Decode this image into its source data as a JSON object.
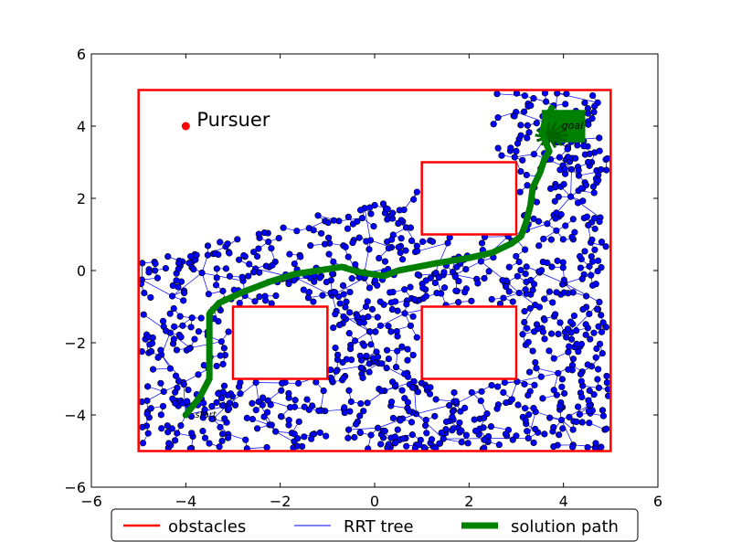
{
  "chart_data": {
    "type": "scatter",
    "xlim": [
      -6,
      6
    ],
    "ylim": [
      -6,
      6
    ],
    "x_ticks": [
      "−6",
      "−4",
      "−2",
      "0",
      "2",
      "4",
      "6"
    ],
    "y_ticks": [
      "−6",
      "−4",
      "−2",
      "0",
      "2",
      "4",
      "6"
    ],
    "grid": false,
    "legend_placement": "bottom-center outside",
    "legend": {
      "obstacles": "obstacles",
      "tree": "RRT tree",
      "path": "solution path"
    },
    "colors": {
      "obstacles": "#ff0000",
      "tree": "#0000ff",
      "nodes": "#0000ff",
      "path": "#008000",
      "pursuer": "#ff0000"
    },
    "boundary": {
      "x": [
        -5,
        5
      ],
      "y": [
        -5,
        5
      ]
    },
    "obstacles": [
      {
        "x": [
          1,
          3
        ],
        "y": [
          1,
          3
        ]
      },
      {
        "x": [
          -3,
          -1
        ],
        "y": [
          -3,
          -1
        ]
      },
      {
        "x": [
          1,
          3
        ],
        "y": [
          -3,
          -1
        ]
      }
    ],
    "pursuer": {
      "label": "Pursuer",
      "x": -4,
      "y": 4
    },
    "start": {
      "label": "start",
      "x": -4,
      "y": -4
    },
    "goal": {
      "label": "goal",
      "x": 4,
      "y": 4,
      "region": {
        "x": [
          3.5,
          4.5
        ],
        "y": [
          3.5,
          4.5
        ]
      }
    },
    "solution_path": [
      [
        -4.0,
        -4.0
      ],
      [
        -3.7,
        -3.5
      ],
      [
        -3.5,
        -3.0
      ],
      [
        -3.5,
        -1.2
      ],
      [
        -3.3,
        -0.9
      ],
      [
        -2.8,
        -0.6
      ],
      [
        -2.6,
        -0.5
      ],
      [
        -2.2,
        -0.3
      ],
      [
        -1.7,
        -0.1
      ],
      [
        -1.2,
        0.0
      ],
      [
        -0.7,
        0.1
      ],
      [
        -0.3,
        -0.05
      ],
      [
        0.2,
        -0.15
      ],
      [
        0.5,
        0.0
      ],
      [
        0.9,
        0.1
      ],
      [
        1.3,
        0.2
      ],
      [
        2.0,
        0.35
      ],
      [
        2.5,
        0.5
      ],
      [
        2.9,
        0.75
      ],
      [
        3.1,
        0.95
      ],
      [
        3.2,
        1.3
      ],
      [
        3.3,
        1.8
      ],
      [
        3.35,
        2.3
      ],
      [
        3.5,
        2.7
      ],
      [
        3.6,
        3.1
      ],
      [
        3.7,
        3.3
      ],
      [
        3.55,
        3.8
      ],
      [
        3.6,
        4.1
      ],
      [
        3.75,
        4.5
      ]
    ]
  }
}
